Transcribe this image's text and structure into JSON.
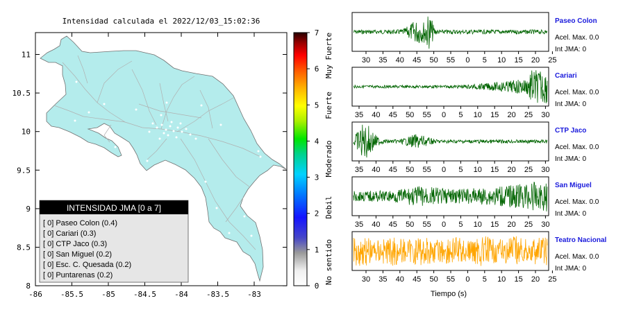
{
  "map": {
    "title": "Intensidad calculada el 2022/12/03_15:02:36",
    "lon_ticks": [
      "-86",
      "-85.5",
      "-85",
      "-84.5",
      "-84",
      "-83.5",
      "-83"
    ],
    "lat_ticks": [
      "11",
      "10.5",
      "10",
      "9.5",
      "9",
      "8.5",
      "8"
    ],
    "land_color": "#b4ecec",
    "road_color": "#b0b0b0"
  },
  "legend": {
    "title": "INTENSIDAD JMA [0 a 7]",
    "items": [
      "[ 0]  Paseo Colon (0.4)",
      "[ 0]  Cariari (0.3)",
      "[ 0]  CTP Jaco (0.3)",
      "[ 0]  San Miguel (0.2)",
      "[ 0]  Esc. C. Quesada (0.2)",
      "[ 0]  Puntarenas (0.2)"
    ]
  },
  "colorbar": {
    "ticks": [
      "7",
      "6",
      "5",
      "4",
      "3",
      "2",
      "1",
      "0"
    ],
    "labels": [
      "Muy Fuerte",
      "Fuerte",
      "Moderado",
      "Debil",
      "No sentido"
    ]
  },
  "traces": {
    "x_label": "Tiempo (s)",
    "stations": [
      {
        "name": "Paseo Colon",
        "acel": "Acel. Max. 0.0",
        "jma": "Int JMA: 0",
        "color": "#006400",
        "ticks": [
          "30",
          "35",
          "40",
          "45",
          "50",
          "55",
          "0",
          "5",
          "10",
          "15",
          "20",
          "25"
        ]
      },
      {
        "name": "Cariari",
        "acel": "Acel. Max. 0.0",
        "jma": "Int JMA: 0",
        "color": "#006400",
        "ticks": [
          "35",
          "40",
          "45",
          "50",
          "55",
          "0",
          "5",
          "10",
          "15",
          "20",
          "25",
          "30"
        ]
      },
      {
        "name": "CTP Jaco",
        "acel": "Acel. Max. 0.0",
        "jma": "Int JMA: 0",
        "color": "#006400",
        "ticks": [
          "35",
          "40",
          "45",
          "50",
          "55",
          "0",
          "5",
          "10",
          "15",
          "20",
          "25",
          "30"
        ]
      },
      {
        "name": "San Miguel",
        "acel": "Acel. Max. 0.0",
        "jma": "Int JMA: 0",
        "color": "#006400",
        "ticks": [
          "35",
          "40",
          "45",
          "50",
          "55",
          "0",
          "5",
          "10",
          "15",
          "20",
          "25",
          "30"
        ]
      },
      {
        "name": "Teatro Nacional",
        "acel": "Acel. Max. 0.0",
        "jma": "Int JMA: 0",
        "color": "#ffa500",
        "ticks": [
          "30",
          "35",
          "40",
          "45",
          "50",
          "55",
          "0",
          "5",
          "10",
          "15",
          "20",
          "25"
        ]
      }
    ]
  }
}
